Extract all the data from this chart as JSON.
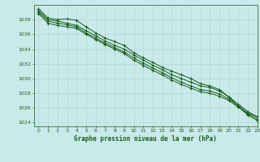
{
  "background_color": "#c8eaea",
  "grid_color": "#b0d8d8",
  "line_color": "#1a5c1a",
  "title": "Graphe pression niveau de la mer (hPa)",
  "xlim": [
    -0.5,
    23
  ],
  "ylim": [
    1023.5,
    1040.0
  ],
  "yticks": [
    1024,
    1026,
    1028,
    1030,
    1032,
    1034,
    1036,
    1038
  ],
  "xticks": [
    0,
    1,
    2,
    3,
    4,
    5,
    6,
    7,
    8,
    9,
    10,
    11,
    12,
    13,
    14,
    15,
    16,
    17,
    18,
    19,
    20,
    21,
    22,
    23
  ],
  "series": [
    [
      1039.5,
      1038.2,
      1038.0,
      1038.1,
      1037.9,
      1037.0,
      1036.2,
      1035.5,
      1035.0,
      1034.5,
      1033.5,
      1032.8,
      1032.2,
      1031.5,
      1031.0,
      1030.5,
      1030.0,
      1029.3,
      1029.0,
      1028.5,
      1027.5,
      1026.2,
      1025.0,
      1024.3
    ],
    [
      1039.2,
      1038.0,
      1037.8,
      1037.5,
      1037.2,
      1036.5,
      1035.8,
      1035.1,
      1034.5,
      1034.0,
      1033.2,
      1032.5,
      1031.8,
      1031.2,
      1030.5,
      1030.0,
      1029.5,
      1029.0,
      1028.8,
      1028.3,
      1027.5,
      1026.5,
      1025.5,
      1024.8
    ],
    [
      1039.0,
      1037.8,
      1037.5,
      1037.3,
      1037.0,
      1036.2,
      1035.5,
      1034.8,
      1034.2,
      1033.6,
      1032.8,
      1032.1,
      1031.4,
      1030.8,
      1030.1,
      1029.5,
      1029.0,
      1028.5,
      1028.3,
      1027.9,
      1027.2,
      1026.3,
      1025.3,
      1024.8
    ],
    [
      1038.8,
      1037.5,
      1037.2,
      1037.0,
      1036.8,
      1036.0,
      1035.3,
      1034.6,
      1034.0,
      1033.4,
      1032.5,
      1031.8,
      1031.1,
      1030.5,
      1029.8,
      1029.2,
      1028.7,
      1028.2,
      1028.0,
      1027.6,
      1027.0,
      1026.1,
      1025.2,
      1024.5
    ]
  ],
  "figsize": [
    3.2,
    2.0
  ],
  "dpi": 100
}
